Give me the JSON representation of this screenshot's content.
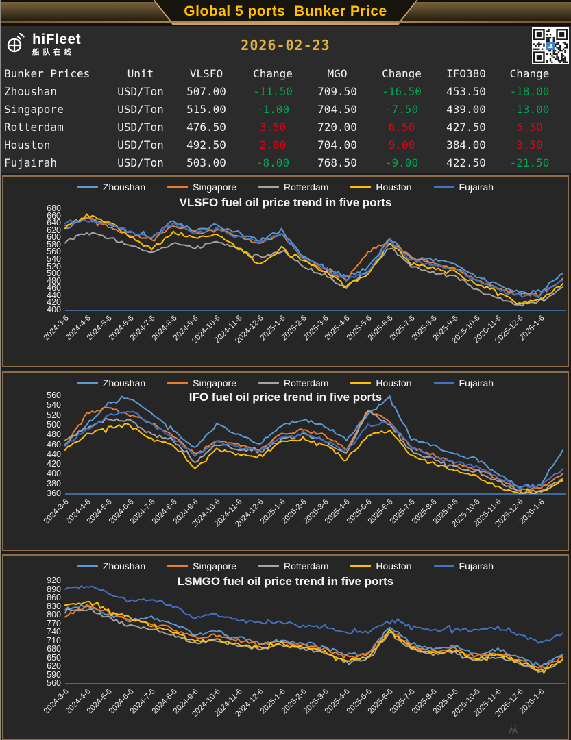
{
  "page": {
    "title": "Global 5 ports  Bunker Price",
    "date": "2026-02-23",
    "watermark": "从"
  },
  "logo": {
    "brand": "hiFleet",
    "subtitle": "船队在线"
  },
  "colors": {
    "gold": "#FFC000",
    "date_gold": "#E3B341",
    "border_tan": "#8A6E4B",
    "axis_blue": "#4A7EBB",
    "increase_red": "#E60012",
    "decrease_green": "#00A650",
    "series": {
      "Zhoushan": "#5B9BD5",
      "Singapore": "#ED7D31",
      "Rotterdam": "#A5A5A5",
      "Houston": "#FFC000",
      "Fujairah": "#4472C4"
    }
  },
  "table": {
    "headers": [
      "Bunker Prices",
      "Unit",
      "VLSFO",
      "Change",
      "MGO",
      "Change",
      "IFO380",
      "Change"
    ],
    "rows": [
      {
        "port": "Zhoushan",
        "unit": "USD/Ton",
        "vlsfo": "507.00",
        "vlsfo_change": "-11.50",
        "mgo": "709.50",
        "mgo_change": "-16.50",
        "ifo380": "453.50",
        "ifo380_change": "-18.00"
      },
      {
        "port": "Singapore",
        "unit": "USD/Ton",
        "vlsfo": "515.00",
        "vlsfo_change": "-1.00",
        "mgo": "704.50",
        "mgo_change": "-7.50",
        "ifo380": "439.00",
        "ifo380_change": "-13.00"
      },
      {
        "port": "Rotterdam",
        "unit": "USD/Ton",
        "vlsfo": "476.50",
        "vlsfo_change": "3.50",
        "mgo": "720.00",
        "mgo_change": "6.50",
        "ifo380": "427.50",
        "ifo380_change": "5.50"
      },
      {
        "port": "Houston",
        "unit": "USD/Ton",
        "vlsfo": "492.50",
        "vlsfo_change": "2.00",
        "mgo": "704.00",
        "mgo_change": "9.00",
        "ifo380": "384.00",
        "ifo380_change": "3.50"
      },
      {
        "port": "Fujairah",
        "unit": "USD/Ton",
        "vlsfo": "503.00",
        "vlsfo_change": "-8.00",
        "mgo": "768.50",
        "mgo_change": "-9.00",
        "ifo380": "422.50",
        "ifo380_change": "-21.50"
      }
    ]
  },
  "chart_data": [
    {
      "type": "line",
      "title": "VLSFO fuel oil price trend in five ports",
      "legend_position": "top",
      "grid": false,
      "ylim": [
        400,
        680
      ],
      "yticks": [
        680,
        660,
        640,
        620,
        600,
        580,
        560,
        540,
        520,
        500,
        480,
        460,
        440,
        420,
        400
      ],
      "x_ticks": [
        "2024-3-6",
        "2024-4-6",
        "2024-5-6",
        "2024-6-6",
        "2024-7-6",
        "2024-8-6",
        "2024-9-6",
        "2024-10-6",
        "2024-11-6",
        "2024-12-6",
        "2025-1-6",
        "2025-2-6",
        "2025-3-6",
        "2025-4-6",
        "2025-5-6",
        "2025-6-6",
        "2025-7-6",
        "2025-8-6",
        "2025-9-6",
        "2025-10-6",
        "2025-11-6",
        "2025-12-6",
        "2026-1-6"
      ],
      "anchor_x": [
        "2024-3",
        "2024-4",
        "2024-5",
        "2024-6",
        "2024-7",
        "2024-8",
        "2024-9",
        "2024-10",
        "2024-11",
        "2024-12",
        "2025-1",
        "2025-2",
        "2025-3",
        "2025-4",
        "2025-5",
        "2025-6",
        "2025-7",
        "2025-8",
        "2025-9",
        "2025-10",
        "2025-11",
        "2025-12",
        "2026-1",
        "2026-2"
      ],
      "series": [
        {
          "name": "Zhoushan",
          "color": "#5B9BD5",
          "values": [
            624,
            652,
            638,
            612,
            600,
            645,
            618,
            632,
            612,
            592,
            618,
            548,
            515,
            492,
            515,
            598,
            542,
            538,
            528,
            492,
            468,
            448,
            452,
            500
          ]
        },
        {
          "name": "Singapore",
          "color": "#ED7D31",
          "values": [
            632,
            655,
            632,
            606,
            594,
            634,
            612,
            622,
            602,
            580,
            612,
            540,
            508,
            482,
            560,
            592,
            545,
            528,
            515,
            480,
            460,
            440,
            446,
            486
          ]
        },
        {
          "name": "Rotterdam",
          "color": "#A5A5A5",
          "values": [
            588,
            612,
            600,
            578,
            556,
            585,
            570,
            588,
            566,
            546,
            562,
            522,
            492,
            462,
            508,
            572,
            520,
            502,
            495,
            456,
            432,
            412,
            422,
            462
          ]
        },
        {
          "name": "Houston",
          "color": "#FFC000",
          "values": [
            628,
            660,
            642,
            602,
            566,
            615,
            598,
            605,
            572,
            522,
            572,
            536,
            505,
            466,
            496,
            588,
            526,
            516,
            506,
            470,
            450,
            416,
            432,
            472
          ]
        },
        {
          "name": "Fujairah",
          "color": "#4472C4",
          "values": [
            636,
            648,
            636,
            616,
            600,
            640,
            609,
            624,
            601,
            586,
            610,
            542,
            516,
            486,
            502,
            590,
            536,
            524,
            512,
            480,
            456,
            436,
            442,
            482
          ]
        }
      ]
    },
    {
      "type": "line",
      "title": "IFO fuel oil price trend in five ports",
      "legend_position": "top",
      "grid": false,
      "ylim": [
        360,
        560
      ],
      "yticks": [
        560,
        540,
        520,
        500,
        480,
        460,
        440,
        420,
        400,
        380,
        360
      ],
      "x_ticks": [
        "2024-3-6",
        "2024-4-6",
        "2024-5-6",
        "2024-6-6",
        "2024-7-6",
        "2024-8-6",
        "2024-9-6",
        "2024-10-6",
        "2024-11-6",
        "2024-12-6",
        "2025-1-6",
        "2025-2-6",
        "2025-3-6",
        "2025-4-6",
        "2025-5-6",
        "2025-6-6",
        "2025-7-6",
        "2025-8-6",
        "2025-9-6",
        "2025-10-6",
        "2025-11-6",
        "2025-12-6",
        "2026-1-6"
      ],
      "anchor_x": [
        "2024-3",
        "2024-4",
        "2024-5",
        "2024-6",
        "2024-7",
        "2024-8",
        "2024-9",
        "2024-10",
        "2024-11",
        "2024-12",
        "2025-1",
        "2025-2",
        "2025-3",
        "2025-4",
        "2025-5",
        "2025-6",
        "2025-7",
        "2025-8",
        "2025-9",
        "2025-10",
        "2025-11",
        "2025-12",
        "2026-1",
        "2026-2"
      ],
      "series": [
        {
          "name": "Zhoushan",
          "color": "#5B9BD5",
          "values": [
            462,
            500,
            544,
            554,
            524,
            490,
            452,
            500,
            480,
            462,
            500,
            510,
            498,
            470,
            520,
            558,
            470,
            458,
            440,
            430,
            400,
            372,
            380,
            448
          ]
        },
        {
          "name": "Singapore",
          "color": "#ED7D31",
          "values": [
            456,
            524,
            534,
            520,
            504,
            478,
            440,
            470,
            460,
            450,
            480,
            490,
            478,
            450,
            528,
            508,
            452,
            440,
            420,
            410,
            390,
            366,
            372,
            400
          ]
        },
        {
          "name": "Rotterdam",
          "color": "#A5A5A5",
          "values": [
            470,
            494,
            510,
            508,
            480,
            468,
            422,
            460,
            450,
            444,
            470,
            480,
            468,
            440,
            528,
            498,
            446,
            430,
            416,
            404,
            386,
            362,
            366,
            390
          ]
        },
        {
          "name": "Houston",
          "color": "#FFC000",
          "values": [
            450,
            480,
            494,
            500,
            470,
            458,
            412,
            450,
            440,
            434,
            464,
            470,
            458,
            430,
            478,
            488,
            438,
            420,
            408,
            394,
            372,
            360,
            362,
            386
          ]
        },
        {
          "name": "Fujairah",
          "color": "#4472C4",
          "values": [
            456,
            490,
            518,
            528,
            500,
            474,
            436,
            464,
            454,
            448,
            474,
            484,
            468,
            444,
            498,
            504,
            454,
            434,
            424,
            414,
            394,
            370,
            376,
            410
          ]
        }
      ]
    },
    {
      "type": "line",
      "title": "LSMGO fuel oil price trend in five ports",
      "legend_position": "top",
      "grid": false,
      "ylim": [
        560,
        920
      ],
      "yticks": [
        920,
        890,
        860,
        830,
        800,
        770,
        740,
        710,
        680,
        650,
        620,
        590,
        560
      ],
      "x_ticks": [
        "2024-3-6",
        "2024-4-6",
        "2024-5-6",
        "2024-6-6",
        "2024-7-6",
        "2024-8-6",
        "2024-9-6",
        "2024-10-6",
        "2024-11-6",
        "2024-12-6",
        "2025-1-6",
        "2025-2-6",
        "2025-3-6",
        "2025-4-6",
        "2025-5-6",
        "2025-6-6",
        "2025-7-6",
        "2025-8-6",
        "2025-9-6",
        "2025-10-6",
        "2025-11-6",
        "2025-12-6",
        "2026-1-6"
      ],
      "anchor_x": [
        "2024-3",
        "2024-4",
        "2024-5",
        "2024-6",
        "2024-7",
        "2024-8",
        "2024-9",
        "2024-10",
        "2024-11",
        "2024-12",
        "2025-1",
        "2025-2",
        "2025-3",
        "2025-4",
        "2025-5",
        "2025-6",
        "2025-7",
        "2025-8",
        "2025-9",
        "2025-10",
        "2025-11",
        "2025-12",
        "2026-1",
        "2026-2"
      ],
      "series": [
        {
          "name": "Zhoushan",
          "color": "#5B9BD5",
          "values": [
            820,
            832,
            800,
            780,
            790,
            768,
            730,
            740,
            720,
            700,
            710,
            700,
            690,
            660,
            664,
            758,
            700,
            680,
            690,
            660,
            680,
            650,
            620,
            660
          ]
        },
        {
          "name": "Singapore",
          "color": "#ED7D31",
          "values": [
            796,
            830,
            810,
            780,
            770,
            750,
            720,
            730,
            710,
            694,
            704,
            694,
            680,
            650,
            660,
            748,
            690,
            670,
            680,
            650,
            664,
            640,
            610,
            650
          ]
        },
        {
          "name": "Rotterdam",
          "color": "#A5A5A5",
          "values": [
            810,
            820,
            790,
            760,
            750,
            730,
            700,
            710,
            690,
            680,
            690,
            680,
            664,
            634,
            644,
            738,
            680,
            660,
            670,
            640,
            654,
            630,
            600,
            640
          ]
        },
        {
          "name": "Houston",
          "color": "#FFC000",
          "values": [
            830,
            846,
            814,
            790,
            760,
            740,
            704,
            714,
            694,
            684,
            694,
            684,
            670,
            640,
            650,
            744,
            684,
            664,
            674,
            644,
            660,
            634,
            604,
            644
          ]
        },
        {
          "name": "Fujairah",
          "color": "#4472C4",
          "values": [
            888,
            900,
            878,
            846,
            856,
            828,
            790,
            800,
            780,
            770,
            774,
            760,
            754,
            736,
            740,
            778,
            760,
            744,
            750,
            744,
            754,
            730,
            700,
            734
          ]
        }
      ]
    }
  ]
}
